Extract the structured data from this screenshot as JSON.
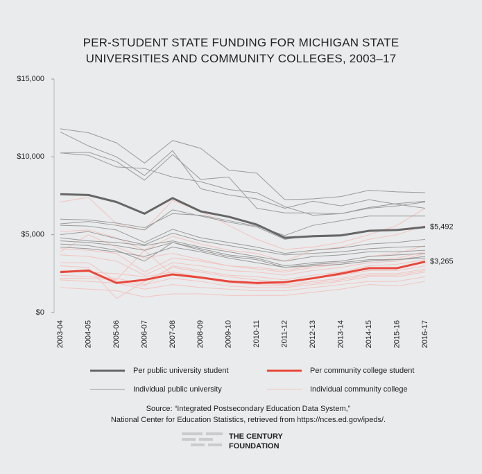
{
  "chart_data": {
    "type": "line",
    "title": "PER-STUDENT STATE FUNDING FOR MICHIGAN STATE UNIVERSITIES AND COMMUNITY COLLEGES, 2003–17",
    "categories": [
      "2003-04",
      "2004-05",
      "2005-06",
      "2006-07",
      "2007-08",
      "2008-09",
      "2009-10",
      "2010-11",
      "2011-12",
      "2012-13",
      "2013-14",
      "2014-15",
      "2015-16",
      "2016-17"
    ],
    "ylim": [
      0,
      15000
    ],
    "yticks": [
      {
        "value": 0,
        "label": "$0"
      },
      {
        "value": 5000,
        "label": "$5,000"
      },
      {
        "value": 10000,
        "label": "$10,000"
      },
      {
        "value": 15000,
        "label": "$15,000"
      }
    ],
    "group_series": [
      {
        "name": "Individual community college",
        "color": "#f4c3bf",
        "lines": [
          [
            7100,
            7400,
            5700,
            5300,
            7200,
            6500,
            5600,
            4700,
            4050,
            4200,
            4500,
            5000,
            5600,
            6700
          ],
          [
            5200,
            5300,
            4800,
            4000,
            4900,
            4400,
            4000,
            3800,
            3300,
            4000,
            4200,
            4700,
            5000,
            5600
          ],
          [
            4100,
            4000,
            3800,
            2600,
            3500,
            3300,
            3000,
            2900,
            2700,
            3000,
            3300,
            3600,
            3800,
            4300
          ],
          [
            3700,
            3600,
            3300,
            2400,
            3200,
            3000,
            2700,
            2600,
            2400,
            2700,
            2900,
            3200,
            3300,
            3800
          ],
          [
            3200,
            3200,
            2000,
            1700,
            3000,
            2700,
            2400,
            2300,
            2100,
            2400,
            2600,
            3000,
            3100,
            3400
          ],
          [
            3000,
            2900,
            900,
            2000,
            2900,
            2600,
            2300,
            2100,
            1900,
            2200,
            2400,
            2700,
            2700,
            3000
          ],
          [
            2700,
            2600,
            2500,
            2300,
            2600,
            2300,
            2000,
            1900,
            1800,
            2000,
            2200,
            2500,
            2500,
            2800
          ],
          [
            2400,
            2300,
            2200,
            1800,
            2200,
            2000,
            1700,
            1600,
            1600,
            1800,
            2000,
            2300,
            2300,
            2600
          ],
          [
            2100,
            2000,
            1900,
            1500,
            1800,
            1600,
            1500,
            1400,
            1400,
            1600,
            1800,
            2000,
            2000,
            2300
          ],
          [
            1600,
            1500,
            1400,
            1000,
            1200,
            1200,
            1100,
            1100,
            1100,
            1300,
            1500,
            1800,
            1700,
            2000
          ],
          [
            3900,
            5000,
            4200,
            3500,
            3800,
            3400,
            3000,
            2800,
            2600,
            2900,
            3100,
            3300,
            3500,
            3900
          ],
          [
            2200,
            2200,
            2100,
            4000,
            2400,
            2200,
            1900,
            1800,
            1700,
            1900,
            2100,
            2400,
            2400,
            2700
          ]
        ]
      },
      {
        "name": "Individual public university",
        "color": "#9a9a9a",
        "lines": [
          [
            11800,
            11550,
            10900,
            9600,
            11050,
            10550,
            9150,
            8950,
            7250,
            7300,
            7450,
            7850,
            7750,
            7700
          ],
          [
            11600,
            10700,
            10000,
            8800,
            10400,
            7950,
            7550,
            7300,
            6700,
            7150,
            6850,
            7250,
            6950,
            6700
          ],
          [
            10250,
            10300,
            9700,
            8500,
            10150,
            8550,
            8700,
            6700,
            6400,
            6400,
            6350,
            6700,
            6850,
            7100
          ],
          [
            10250,
            10100,
            9350,
            9250,
            8700,
            8400,
            7900,
            7700,
            6800,
            6250,
            6350,
            6750,
            7000,
            7150
          ],
          [
            6000,
            5950,
            5750,
            5450,
            6350,
            6250,
            5900,
            5550,
            4950,
            5600,
            5900,
            6200,
            6200,
            6200
          ],
          [
            5700,
            5850,
            5600,
            5300,
            6600,
            6200,
            5800,
            5500,
            4700,
            4950,
            5000,
            5200,
            5300,
            5500
          ],
          [
            5600,
            5550,
            5300,
            4500,
            5350,
            4800,
            4500,
            4200,
            3800,
            4000,
            4150,
            4400,
            4500,
            4700
          ],
          [
            5000,
            5200,
            4750,
            4350,
            5100,
            4600,
            4300,
            4000,
            3700,
            3800,
            3900,
            4100,
            4200,
            4250
          ],
          [
            4800,
            4600,
            4500,
            4300,
            4600,
            4200,
            3900,
            3600,
            3300,
            3600,
            3700,
            3900,
            3900,
            4000
          ],
          [
            4600,
            4500,
            4300,
            4000,
            4500,
            4100,
            3700,
            3500,
            3000,
            3200,
            3300,
            3600,
            3700,
            3800
          ],
          [
            4200,
            4100,
            3900,
            3600,
            4200,
            3900,
            3500,
            3200,
            2900,
            3000,
            3100,
            3300,
            3400,
            3500
          ],
          [
            4400,
            4300,
            4000,
            3300,
            4500,
            4000,
            3600,
            3400,
            2900,
            3100,
            3200,
            3400,
            3400,
            3600
          ]
        ]
      }
    ],
    "series": [
      {
        "name": "Per public university student",
        "color": "#666666",
        "values": [
          7600,
          7550,
          7100,
          6350,
          7350,
          6500,
          6150,
          5650,
          4800,
          4900,
          4950,
          5250,
          5300,
          5492
        ],
        "value_labels": [
          null,
          null,
          null,
          null,
          null,
          null,
          null,
          null,
          null,
          null,
          null,
          null,
          null,
          "$5,492"
        ]
      },
      {
        "name": "Per community college student",
        "color": "#e8473a",
        "values": [
          2600,
          2700,
          1900,
          2100,
          2450,
          2250,
          2000,
          1900,
          1950,
          2200,
          2500,
          2850,
          2850,
          3265
        ],
        "value_labels": [
          null,
          null,
          null,
          null,
          null,
          null,
          null,
          null,
          null,
          null,
          null,
          null,
          null,
          "$3,265"
        ]
      }
    ],
    "source": [
      "Source:    “Integrated Postsecondary Education Data System,”",
      "National Center for Education Statistics, retrieved from https://nces.ed.gov/ipeds/."
    ],
    "logo": [
      "THE CENTURY",
      "FOUNDATION"
    ]
  }
}
